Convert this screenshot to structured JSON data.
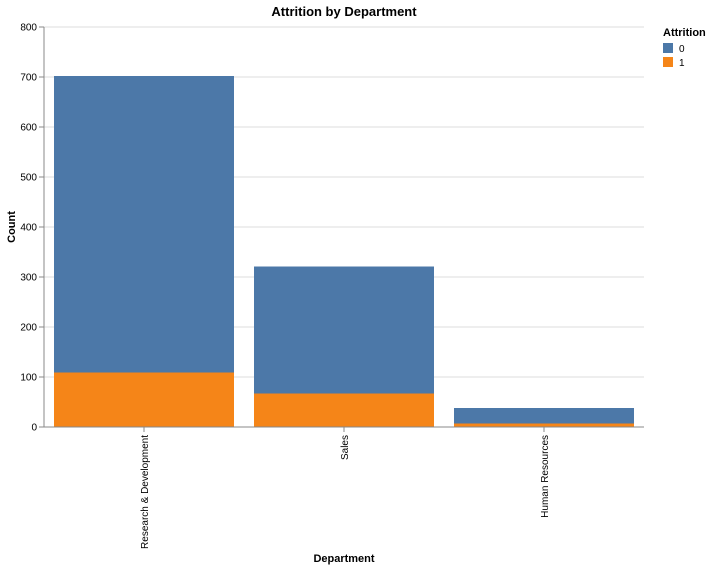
{
  "chart_data": {
    "type": "bar",
    "stacked": true,
    "title": "Attrition by Department",
    "xlabel": "Department",
    "ylabel": "Count",
    "categories": [
      "Research & Development",
      "Sales",
      "Human Resources"
    ],
    "series": [
      {
        "name": "0",
        "values": [
          593,
          254,
          31
        ],
        "color": "#4c78a8"
      },
      {
        "name": "1",
        "values": [
          109,
          67,
          7
        ],
        "color": "#f58518"
      }
    ],
    "ylim": [
      0,
      800
    ],
    "yticks": [
      0,
      100,
      200,
      300,
      400,
      500,
      600,
      700,
      800
    ],
    "grid": true,
    "legend": {
      "title": "Attrition",
      "placement": "top-right"
    }
  }
}
